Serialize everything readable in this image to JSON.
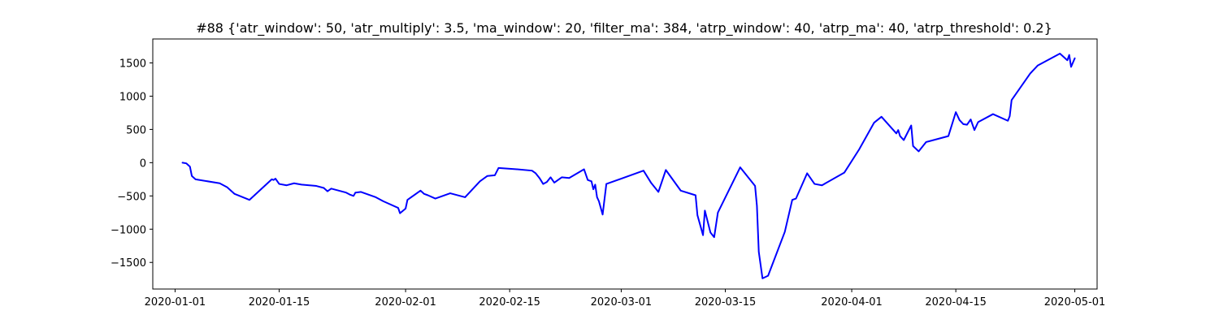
{
  "chart_data": {
    "type": "line",
    "title": "#88 {'atr_window': 50, 'atr_multiply': 3.5, 'ma_window': 20, 'filter_ma': 384, 'atrp_window': 40, 'atrp_ma': 40, 'atrp_threshold': 0.2}",
    "xlabel": "",
    "ylabel": "",
    "x_type": "date",
    "xlim": [
      "2019-12-29",
      "2020-05-04"
    ],
    "ylim": [
      -1900,
      1860
    ],
    "x_ticks": [
      {
        "value": "2020-01-01",
        "label": "2020-01-01"
      },
      {
        "value": "2020-01-15",
        "label": "2020-01-15"
      },
      {
        "value": "2020-02-01",
        "label": "2020-02-01"
      },
      {
        "value": "2020-02-15",
        "label": "2020-02-15"
      },
      {
        "value": "2020-03-01",
        "label": "2020-03-01"
      },
      {
        "value": "2020-03-15",
        "label": "2020-03-15"
      },
      {
        "value": "2020-04-01",
        "label": "2020-04-01"
      },
      {
        "value": "2020-04-15",
        "label": "2020-04-15"
      },
      {
        "value": "2020-05-01",
        "label": "2020-05-01"
      }
    ],
    "y_ticks": [
      {
        "value": 1500,
        "label": "1500"
      },
      {
        "value": 1000,
        "label": "1000"
      },
      {
        "value": 500,
        "label": "500"
      },
      {
        "value": 0,
        "label": "0"
      },
      {
        "value": -500,
        "label": "−500"
      },
      {
        "value": -1000,
        "label": "−1000"
      },
      {
        "value": -1500,
        "label": "−1500"
      }
    ],
    "grid": false,
    "legend": "none",
    "series": [
      {
        "color": "#0000ff",
        "x": [
          "2020-01-02",
          "2020-01-02 12:00",
          "2020-01-03",
          "2020-01-03 06:00",
          "2020-01-03 18:00",
          "2020-01-07",
          "2020-01-08",
          "2020-01-09",
          "2020-01-11",
          "2020-01-14",
          "2020-01-14 06:00",
          "2020-01-14 12:00",
          "2020-01-15",
          "2020-01-16",
          "2020-01-17",
          "2020-01-18",
          "2020-01-20",
          "2020-01-21",
          "2020-01-21 12:00",
          "2020-01-22",
          "2020-01-24",
          "2020-01-24 12:00",
          "2020-01-25",
          "2020-01-25 06:00",
          "2020-01-26",
          "2020-01-28",
          "2020-01-29",
          "2020-01-31",
          "2020-01-31 06:00",
          "2020-02-01",
          "2020-02-01 06:00",
          "2020-02-03",
          "2020-02-03 12:00",
          "2020-02-04",
          "2020-02-05",
          "2020-02-07",
          "2020-02-09",
          "2020-02-11",
          "2020-02-12",
          "2020-02-13",
          "2020-02-13 12:00",
          "2020-02-16",
          "2020-02-18",
          "2020-02-18 12:00",
          "2020-02-19",
          "2020-02-19 12:00",
          "2020-02-20",
          "2020-02-20 12:00",
          "2020-02-21",
          "2020-02-22",
          "2020-02-23",
          "2020-02-25",
          "2020-02-25 12:00",
          "2020-02-26",
          "2020-02-26 06:00",
          "2020-02-26 12:00",
          "2020-02-26 18:00",
          "2020-02-27",
          "2020-02-27 12:00",
          "2020-02-28",
          "2020-03-04",
          "2020-03-05",
          "2020-03-06",
          "2020-03-07",
          "2020-03-09",
          "2020-03-11",
          "2020-03-11 06:00",
          "2020-03-12",
          "2020-03-12 06:00",
          "2020-03-13",
          "2020-03-13 12:00",
          "2020-03-14",
          "2020-03-17",
          "2020-03-19",
          "2020-03-19 06:00",
          "2020-03-19 12:00",
          "2020-03-20",
          "2020-03-20 18:00",
          "2020-03-23",
          "2020-03-24",
          "2020-03-24 12:00",
          "2020-03-26",
          "2020-03-27",
          "2020-03-28",
          "2020-03-31",
          "2020-04-02",
          "2020-04-04",
          "2020-04-05",
          "2020-04-07",
          "2020-04-07 06:00",
          "2020-04-07 12:00",
          "2020-04-08",
          "2020-04-09",
          "2020-04-09 06:00",
          "2020-04-10",
          "2020-04-11",
          "2020-04-14",
          "2020-04-15",
          "2020-04-15 12:00",
          "2020-04-16",
          "2020-04-16 12:00",
          "2020-04-17",
          "2020-04-17 12:00",
          "2020-04-18",
          "2020-04-20",
          "2020-04-22",
          "2020-04-22 06:00",
          "2020-04-22 12:00",
          "2020-04-25",
          "2020-04-26",
          "2020-04-29",
          "2020-04-30",
          "2020-04-30 06:00",
          "2020-04-30 12:00",
          "2020-05-01"
        ],
        "y": [
          0,
          -10,
          -60,
          -200,
          -250,
          -310,
          -370,
          -470,
          -560,
          -250,
          -260,
          -240,
          -320,
          -340,
          -310,
          -330,
          -350,
          -380,
          -430,
          -390,
          -450,
          -480,
          -500,
          -450,
          -440,
          -520,
          -580,
          -680,
          -760,
          -690,
          -560,
          -420,
          -470,
          -490,
          -540,
          -460,
          -520,
          -280,
          -200,
          -190,
          -80,
          -100,
          -120,
          -160,
          -230,
          -320,
          -290,
          -220,
          -300,
          -220,
          -230,
          -100,
          -260,
          -280,
          -400,
          -330,
          -520,
          -580,
          -780,
          -320,
          -120,
          -300,
          -440,
          -110,
          -420,
          -490,
          -790,
          -1090,
          -720,
          -1050,
          -1120,
          -750,
          -70,
          -350,
          -650,
          -1340,
          -1740,
          -1700,
          -1040,
          -560,
          -540,
          -160,
          -320,
          -340,
          -150,
          200,
          600,
          690,
          440,
          490,
          400,
          340,
          560,
          250,
          170,
          310,
          400,
          760,
          640,
          580,
          570,
          650,
          490,
          610,
          730,
          630,
          700,
          940,
          1340,
          1460,
          1640,
          1540,
          1620,
          1440,
          1570
        ]
      }
    ]
  }
}
